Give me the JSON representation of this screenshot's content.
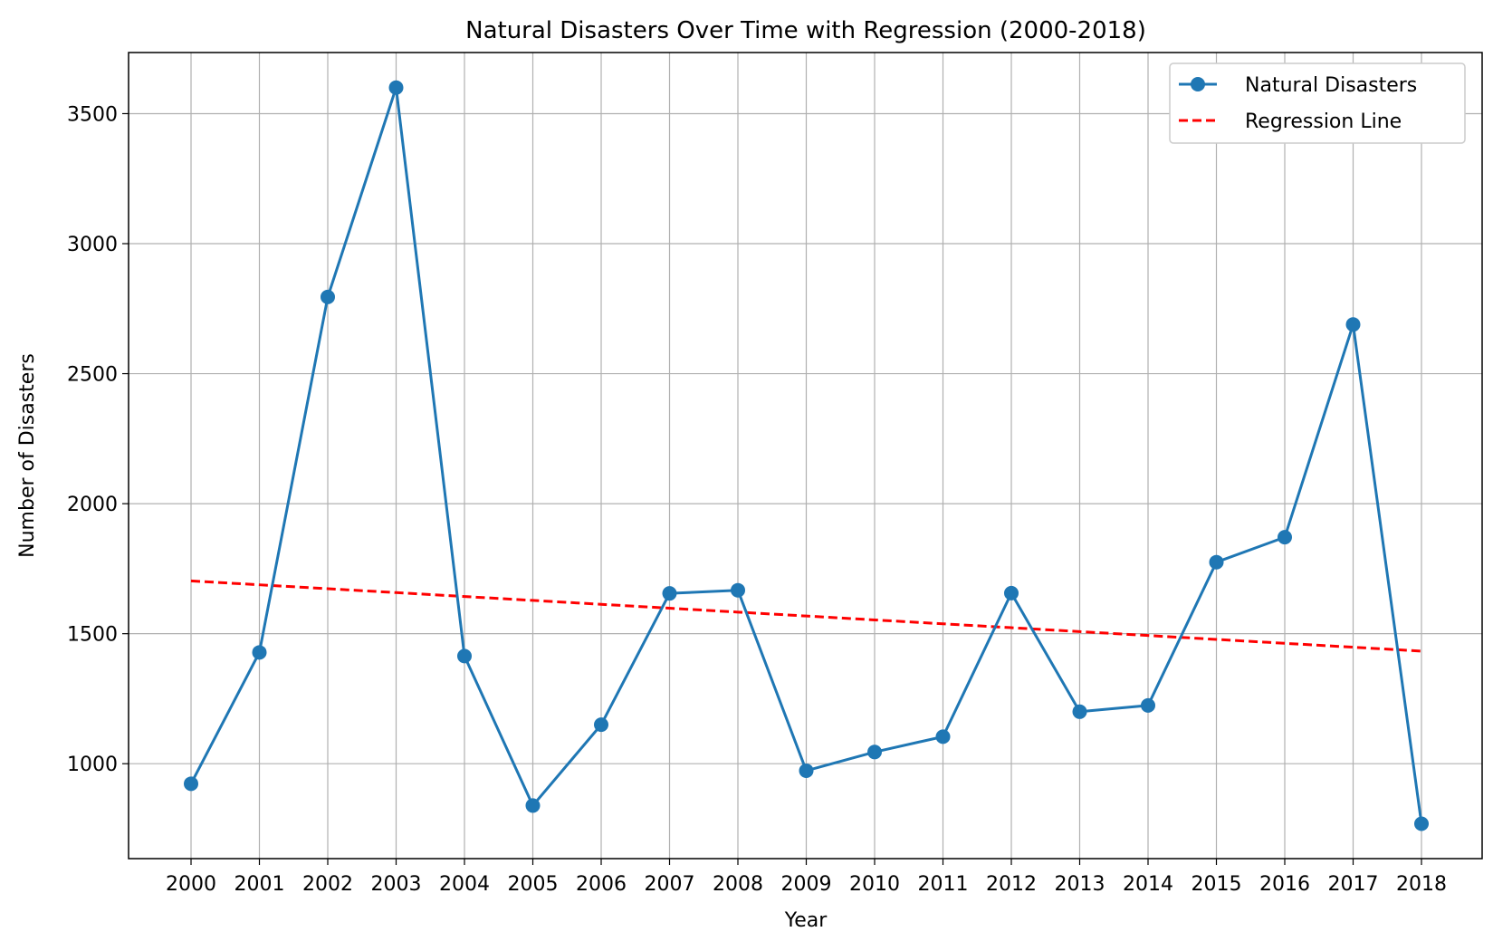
{
  "chart_data": {
    "type": "line",
    "title": "Natural Disasters Over Time with Regression (2000-2018)",
    "xlabel": "Year",
    "ylabel": "Number of Disasters",
    "categories": [
      "2000",
      "2001",
      "2002",
      "2003",
      "2004",
      "2005",
      "2006",
      "2007",
      "2008",
      "2009",
      "2010",
      "2011",
      "2012",
      "2013",
      "2014",
      "2015",
      "2016",
      "2017",
      "2018"
    ],
    "series": [
      {
        "name": "Natural Disasters",
        "style": "solid-line-with-circle-markers",
        "color": "#1f77b4",
        "values": [
          923,
          1428,
          2795,
          3600,
          1414,
          839,
          1150,
          1655,
          1667,
          973,
          1045,
          1104,
          1656,
          1200,
          1224,
          1775,
          1871,
          2689,
          769
        ]
      },
      {
        "name": "Regression Line",
        "style": "dashed-line",
        "color": "#ff0000",
        "values": [
          1703,
          1688,
          1673,
          1658,
          1643,
          1628,
          1613,
          1598,
          1583,
          1568,
          1553,
          1538,
          1523,
          1508,
          1493,
          1478,
          1463,
          1448,
          1433
        ]
      }
    ],
    "y_ticks": [
      1000,
      1500,
      2000,
      2500,
      3000,
      3500
    ],
    "ylim": [
      635,
      3735
    ],
    "grid": true,
    "legend_position": "top-right"
  }
}
